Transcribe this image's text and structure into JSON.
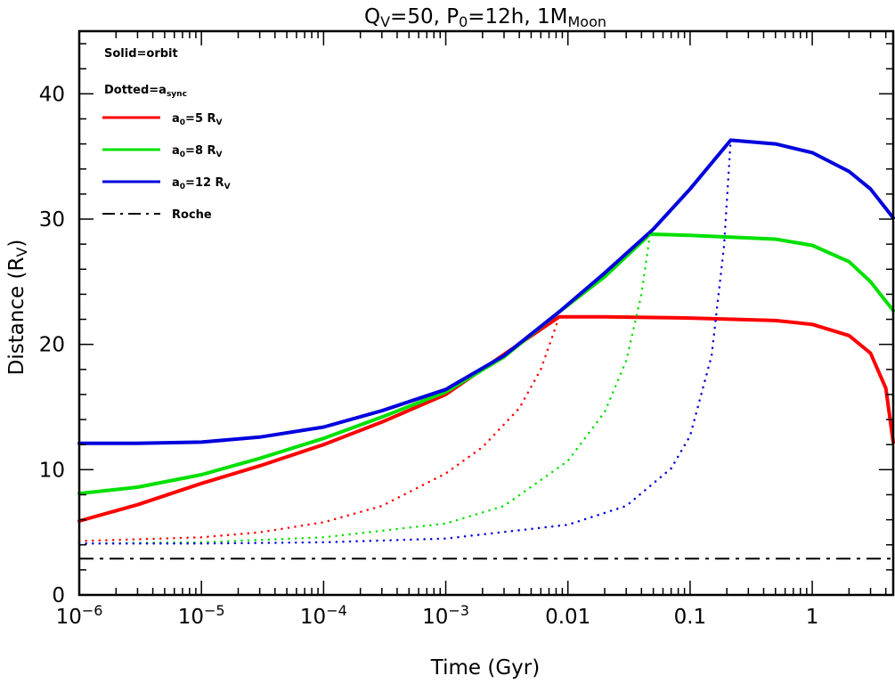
{
  "chart_data": {
    "type": "line",
    "title": {
      "pre": "Q",
      "sub1": "V",
      "mid1": "=50,  P",
      "sub2": "0",
      "mid2": "=12h,  1M",
      "sub3": "Moon"
    },
    "xlabel": "Time  (Gyr)",
    "ylabel": {
      "main": "Distance  (R",
      "sub": "V",
      "close": ")"
    },
    "x_scale": "log",
    "xlim": [
      1e-06,
      4.6
    ],
    "ylim": [
      0,
      45
    ],
    "x_ticks": [
      {
        "v": 1e-06,
        "base": "10",
        "exp": "−6"
      },
      {
        "v": 1e-05,
        "base": "10",
        "exp": "−5"
      },
      {
        "v": 0.0001,
        "base": "10",
        "exp": "−4"
      },
      {
        "v": 0.001,
        "base": "10",
        "exp": "−3"
      },
      {
        "v": 0.01,
        "base": "0.01",
        "exp": ""
      },
      {
        "v": 0.1,
        "base": "0.1",
        "exp": ""
      },
      {
        "v": 1,
        "base": "1",
        "exp": ""
      }
    ],
    "y_ticks": [
      0,
      10,
      20,
      30,
      40
    ],
    "legend_position": "top-left",
    "legend": {
      "note_orbit": "Solid=orbit",
      "note_sync_main": "Dotted=a",
      "note_sync_sub": "sync",
      "entries": [
        {
          "prefix": "a",
          "sub": "0",
          "mid": "=5 R",
          "sub2": "V",
          "color": "#ff0000"
        },
        {
          "prefix": "a",
          "sub": "0",
          "mid": "=8 R",
          "sub2": "V",
          "color": "#00e000"
        },
        {
          "prefix": "a",
          "sub": "0",
          "mid": "=12 R",
          "sub2": "V",
          "color": "#0000dd"
        }
      ],
      "roche_label": "Roche"
    },
    "roche_line": {
      "y": 2.9,
      "color": "#000000"
    },
    "series": [
      {
        "style": "solid",
        "color": "#ff0000",
        "x": [
          1e-06,
          3e-06,
          1e-05,
          3e-05,
          0.0001,
          0.0003,
          0.001,
          0.003,
          0.0085,
          0.02,
          0.1,
          0.5,
          1,
          2,
          3,
          4,
          4.6
        ],
        "y": [
          5.9,
          7.2,
          8.9,
          10.3,
          12.0,
          13.8,
          16.0,
          19.2,
          22.2,
          22.2,
          22.1,
          21.9,
          21.6,
          20.7,
          19.3,
          16.5,
          12.2
        ]
      },
      {
        "style": "solid",
        "color": "#00e000",
        "x": [
          1e-06,
          3e-06,
          1e-05,
          3e-05,
          0.0001,
          0.0003,
          0.001,
          0.003,
          0.0085,
          0.02,
          0.047,
          0.1,
          0.5,
          1,
          2,
          3,
          4.6
        ],
        "y": [
          8.1,
          8.6,
          9.6,
          10.9,
          12.5,
          14.2,
          16.2,
          19.0,
          22.6,
          25.4,
          28.8,
          28.7,
          28.4,
          27.9,
          26.6,
          25.0,
          22.7
        ]
      },
      {
        "style": "solid",
        "color": "#0000dd",
        "x": [
          1e-06,
          3e-06,
          1e-05,
          3e-05,
          0.0001,
          0.0003,
          0.001,
          0.003,
          0.0085,
          0.02,
          0.05,
          0.1,
          0.215,
          0.5,
          1,
          2,
          3,
          4.6
        ],
        "y": [
          12.1,
          12.1,
          12.2,
          12.6,
          13.4,
          14.7,
          16.4,
          19.1,
          22.6,
          25.7,
          29.2,
          32.4,
          36.3,
          36.0,
          35.3,
          33.8,
          32.4,
          30.1
        ]
      },
      {
        "style": "dotted",
        "color": "#ff0000",
        "x": [
          1e-06,
          1e-05,
          3e-05,
          0.0001,
          0.0003,
          0.001,
          0.002,
          0.004,
          0.006,
          0.0085
        ],
        "y": [
          4.3,
          4.6,
          5.0,
          5.8,
          7.1,
          9.7,
          11.8,
          14.9,
          18.0,
          22.2
        ]
      },
      {
        "style": "dotted",
        "color": "#00e000",
        "x": [
          1e-06,
          1e-05,
          0.0001,
          0.001,
          0.003,
          0.01,
          0.02,
          0.03,
          0.04,
          0.047
        ],
        "y": [
          4.1,
          4.2,
          4.6,
          5.7,
          7.1,
          10.7,
          14.6,
          18.7,
          24.0,
          28.8
        ]
      },
      {
        "style": "dotted",
        "color": "#0000dd",
        "x": [
          1e-06,
          1e-05,
          0.0001,
          0.001,
          0.01,
          0.03,
          0.07,
          0.1,
          0.15,
          0.19,
          0.215
        ],
        "y": [
          4.1,
          4.1,
          4.2,
          4.5,
          5.6,
          7.1,
          10.1,
          12.7,
          19.1,
          27.9,
          36.3
        ]
      }
    ]
  }
}
